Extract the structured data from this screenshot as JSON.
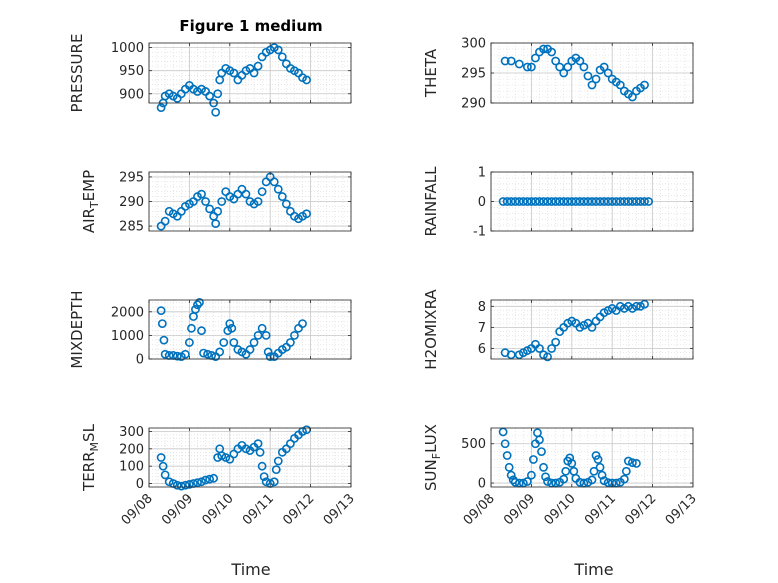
{
  "figure": {
    "title": "Figure 1 medium",
    "xlabel": "Time",
    "xticks": [
      "09/08",
      "09/09",
      "09/10",
      "09/11",
      "09/12",
      "09/13"
    ],
    "series_color": "#0072BD"
  },
  "chart_data": [
    {
      "type": "scatter",
      "ylabel": "PRESSURE",
      "sub": "",
      "ylim": [
        880,
        1010
      ],
      "yticks": [
        900,
        950,
        1000
      ],
      "grid": true,
      "points": [
        [
          0.3,
          870
        ],
        [
          0.35,
          880
        ],
        [
          0.4,
          895
        ],
        [
          0.5,
          900
        ],
        [
          0.6,
          895
        ],
        [
          0.7,
          890
        ],
        [
          0.8,
          900
        ],
        [
          0.9,
          910
        ],
        [
          1.0,
          918
        ],
        [
          1.1,
          910
        ],
        [
          1.2,
          905
        ],
        [
          1.3,
          910
        ],
        [
          1.4,
          905
        ],
        [
          1.5,
          895
        ],
        [
          1.6,
          880
        ],
        [
          1.65,
          860
        ],
        [
          1.7,
          900
        ],
        [
          1.75,
          930
        ],
        [
          1.8,
          945
        ],
        [
          1.9,
          955
        ],
        [
          2.0,
          950
        ],
        [
          2.1,
          945
        ],
        [
          2.2,
          930
        ],
        [
          2.3,
          940
        ],
        [
          2.4,
          950
        ],
        [
          2.5,
          955
        ],
        [
          2.6,
          945
        ],
        [
          2.7,
          960
        ],
        [
          2.8,
          980
        ],
        [
          2.9,
          990
        ],
        [
          3.0,
          995
        ],
        [
          3.1,
          1000
        ],
        [
          3.2,
          995
        ],
        [
          3.3,
          980
        ],
        [
          3.4,
          965
        ],
        [
          3.5,
          955
        ],
        [
          3.6,
          950
        ],
        [
          3.7,
          945
        ],
        [
          3.8,
          935
        ],
        [
          3.9,
          930
        ]
      ]
    },
    {
      "type": "scatter",
      "ylabel": "THETA",
      "sub": "",
      "ylim": [
        290,
        300
      ],
      "yticks": [
        290,
        295,
        300
      ],
      "grid": true,
      "points": [
        [
          0.35,
          297
        ],
        [
          0.5,
          297
        ],
        [
          0.7,
          296.5
        ],
        [
          0.9,
          296
        ],
        [
          1.0,
          296
        ],
        [
          1.1,
          297.5
        ],
        [
          1.2,
          298.5
        ],
        [
          1.3,
          299
        ],
        [
          1.4,
          299
        ],
        [
          1.5,
          298.5
        ],
        [
          1.6,
          297
        ],
        [
          1.7,
          296
        ],
        [
          1.8,
          295
        ],
        [
          1.9,
          296
        ],
        [
          2.0,
          297
        ],
        [
          2.1,
          297.5
        ],
        [
          2.2,
          297
        ],
        [
          2.3,
          296
        ],
        [
          2.4,
          294.5
        ],
        [
          2.5,
          293
        ],
        [
          2.6,
          294
        ],
        [
          2.7,
          295.5
        ],
        [
          2.8,
          296
        ],
        [
          2.9,
          295
        ],
        [
          3.0,
          294
        ],
        [
          3.1,
          293.5
        ],
        [
          3.2,
          293
        ],
        [
          3.3,
          292
        ],
        [
          3.4,
          291.5
        ],
        [
          3.5,
          291
        ],
        [
          3.6,
          292
        ],
        [
          3.7,
          292.5
        ],
        [
          3.8,
          293
        ]
      ]
    },
    {
      "type": "scatter",
      "ylabel": "AIR",
      "sub": "T",
      "ylabel_suffix": "EMP",
      "ylim": [
        284,
        296
      ],
      "yticks": [
        285,
        290,
        295
      ],
      "grid": true,
      "points": [
        [
          0.3,
          285
        ],
        [
          0.4,
          286
        ],
        [
          0.5,
          288
        ],
        [
          0.6,
          287.5
        ],
        [
          0.7,
          287
        ],
        [
          0.8,
          288
        ],
        [
          0.9,
          289
        ],
        [
          1.0,
          289.5
        ],
        [
          1.1,
          290
        ],
        [
          1.2,
          291
        ],
        [
          1.3,
          291.5
        ],
        [
          1.4,
          290
        ],
        [
          1.5,
          288.5
        ],
        [
          1.6,
          287
        ],
        [
          1.65,
          285.5
        ],
        [
          1.7,
          288
        ],
        [
          1.8,
          290
        ],
        [
          1.9,
          292
        ],
        [
          2.0,
          291
        ],
        [
          2.1,
          290.5
        ],
        [
          2.2,
          291.5
        ],
        [
          2.3,
          292.5
        ],
        [
          2.4,
          291.5
        ],
        [
          2.5,
          290
        ],
        [
          2.6,
          289.5
        ],
        [
          2.7,
          290
        ],
        [
          2.8,
          292
        ],
        [
          2.9,
          294
        ],
        [
          3.0,
          295
        ],
        [
          3.1,
          294
        ],
        [
          3.2,
          292.5
        ],
        [
          3.3,
          291
        ],
        [
          3.4,
          289.5
        ],
        [
          3.5,
          288
        ],
        [
          3.6,
          287
        ],
        [
          3.7,
          286.5
        ],
        [
          3.8,
          287
        ],
        [
          3.9,
          287.5
        ]
      ]
    },
    {
      "type": "scatter",
      "ylabel": "RAINFALL",
      "sub": "",
      "ylim": [
        -1,
        1
      ],
      "yticks": [
        -1,
        0,
        1
      ],
      "grid": true,
      "points": [
        [
          0.3,
          0
        ],
        [
          0.4,
          0
        ],
        [
          0.5,
          0
        ],
        [
          0.6,
          0
        ],
        [
          0.7,
          0
        ],
        [
          0.8,
          0
        ],
        [
          0.9,
          0
        ],
        [
          1.0,
          0
        ],
        [
          1.1,
          0
        ],
        [
          1.2,
          0
        ],
        [
          1.3,
          0
        ],
        [
          1.4,
          0
        ],
        [
          1.5,
          0
        ],
        [
          1.6,
          0
        ],
        [
          1.7,
          0
        ],
        [
          1.8,
          0
        ],
        [
          1.9,
          0
        ],
        [
          2.0,
          0
        ],
        [
          2.1,
          0
        ],
        [
          2.2,
          0
        ],
        [
          2.3,
          0
        ],
        [
          2.4,
          0
        ],
        [
          2.5,
          0
        ],
        [
          2.6,
          0
        ],
        [
          2.7,
          0
        ],
        [
          2.8,
          0
        ],
        [
          2.9,
          0
        ],
        [
          3.0,
          0
        ],
        [
          3.1,
          0
        ],
        [
          3.2,
          0
        ],
        [
          3.3,
          0
        ],
        [
          3.4,
          0
        ],
        [
          3.5,
          0
        ],
        [
          3.6,
          0
        ],
        [
          3.7,
          0
        ],
        [
          3.8,
          0
        ],
        [
          3.9,
          0
        ]
      ]
    },
    {
      "type": "scatter",
      "ylabel": "MIXDEPTH",
      "sub": "",
      "ylim": [
        0,
        2500
      ],
      "yticks": [
        0,
        1000,
        2000
      ],
      "grid": true,
      "points": [
        [
          0.3,
          2050
        ],
        [
          0.33,
          1500
        ],
        [
          0.37,
          800
        ],
        [
          0.4,
          200
        ],
        [
          0.5,
          150
        ],
        [
          0.6,
          150
        ],
        [
          0.7,
          120
        ],
        [
          0.8,
          100
        ],
        [
          0.9,
          200
        ],
        [
          1.0,
          700
        ],
        [
          1.05,
          1300
        ],
        [
          1.1,
          1800
        ],
        [
          1.15,
          2100
        ],
        [
          1.2,
          2300
        ],
        [
          1.25,
          2400
        ],
        [
          1.3,
          1200
        ],
        [
          1.35,
          250
        ],
        [
          1.45,
          200
        ],
        [
          1.55,
          150
        ],
        [
          1.65,
          100
        ],
        [
          1.75,
          300
        ],
        [
          1.85,
          700
        ],
        [
          1.95,
          1200
        ],
        [
          2.0,
          1500
        ],
        [
          2.05,
          1300
        ],
        [
          2.1,
          700
        ],
        [
          2.2,
          400
        ],
        [
          2.3,
          300
        ],
        [
          2.4,
          200
        ],
        [
          2.5,
          400
        ],
        [
          2.6,
          700
        ],
        [
          2.7,
          1000
        ],
        [
          2.8,
          1300
        ],
        [
          2.9,
          1000
        ],
        [
          2.95,
          300
        ],
        [
          3.0,
          100
        ],
        [
          3.1,
          100
        ],
        [
          3.2,
          250
        ],
        [
          3.3,
          400
        ],
        [
          3.4,
          500
        ],
        [
          3.5,
          700
        ],
        [
          3.6,
          1000
        ],
        [
          3.7,
          1300
        ],
        [
          3.8,
          1500
        ]
      ]
    },
    {
      "type": "scatter",
      "ylabel": "H2OMIXRA",
      "sub": "",
      "ylim": [
        5.5,
        8.3
      ],
      "yticks": [
        6,
        7,
        8
      ],
      "grid": true,
      "points": [
        [
          0.35,
          5.8
        ],
        [
          0.5,
          5.7
        ],
        [
          0.7,
          5.7
        ],
        [
          0.8,
          5.8
        ],
        [
          0.9,
          5.9
        ],
        [
          1.0,
          6.0
        ],
        [
          1.1,
          6.2
        ],
        [
          1.2,
          6.0
        ],
        [
          1.3,
          5.7
        ],
        [
          1.4,
          5.6
        ],
        [
          1.5,
          6.0
        ],
        [
          1.6,
          6.3
        ],
        [
          1.7,
          6.8
        ],
        [
          1.8,
          7.0
        ],
        [
          1.9,
          7.2
        ],
        [
          2.0,
          7.3
        ],
        [
          2.1,
          7.2
        ],
        [
          2.2,
          7.0
        ],
        [
          2.3,
          7.1
        ],
        [
          2.4,
          7.2
        ],
        [
          2.5,
          7.0
        ],
        [
          2.6,
          7.3
        ],
        [
          2.7,
          7.5
        ],
        [
          2.8,
          7.7
        ],
        [
          2.9,
          7.8
        ],
        [
          3.0,
          7.9
        ],
        [
          3.1,
          7.8
        ],
        [
          3.2,
          8.0
        ],
        [
          3.3,
          7.9
        ],
        [
          3.4,
          8.0
        ],
        [
          3.5,
          7.9
        ],
        [
          3.6,
          8.0
        ],
        [
          3.7,
          8.0
        ],
        [
          3.8,
          8.1
        ]
      ]
    },
    {
      "type": "scatter",
      "ylabel": "TERR",
      "sub": "M",
      "ylabel_suffix": "SL",
      "ylim": [
        -20,
        320
      ],
      "yticks": [
        0,
        100,
        200,
        300
      ],
      "grid": true,
      "points": [
        [
          0.3,
          150
        ],
        [
          0.35,
          100
        ],
        [
          0.4,
          50
        ],
        [
          0.5,
          10
        ],
        [
          0.6,
          0
        ],
        [
          0.7,
          -10
        ],
        [
          0.8,
          -15
        ],
        [
          0.9,
          -10
        ],
        [
          1.0,
          -5
        ],
        [
          1.1,
          0
        ],
        [
          1.2,
          5
        ],
        [
          1.3,
          10
        ],
        [
          1.4,
          20
        ],
        [
          1.5,
          25
        ],
        [
          1.6,
          30
        ],
        [
          1.7,
          150
        ],
        [
          1.75,
          200
        ],
        [
          1.8,
          160
        ],
        [
          1.9,
          150
        ],
        [
          2.0,
          140
        ],
        [
          2.1,
          170
        ],
        [
          2.2,
          200
        ],
        [
          2.3,
          220
        ],
        [
          2.4,
          200
        ],
        [
          2.5,
          190
        ],
        [
          2.6,
          210
        ],
        [
          2.7,
          230
        ],
        [
          2.75,
          180
        ],
        [
          2.8,
          100
        ],
        [
          2.85,
          40
        ],
        [
          2.9,
          10
        ],
        [
          3.0,
          0
        ],
        [
          3.1,
          10
        ],
        [
          3.15,
          80
        ],
        [
          3.2,
          130
        ],
        [
          3.3,
          180
        ],
        [
          3.4,
          200
        ],
        [
          3.5,
          230
        ],
        [
          3.6,
          260
        ],
        [
          3.7,
          280
        ],
        [
          3.8,
          300
        ],
        [
          3.9,
          310
        ]
      ]
    },
    {
      "type": "scatter",
      "ylabel": "SUN",
      "sub": "F",
      "ylabel_suffix": "LUX",
      "ylim": [
        -50,
        700
      ],
      "yticks": [
        0,
        500
      ],
      "grid": true,
      "points": [
        [
          0.3,
          650
        ],
        [
          0.35,
          500
        ],
        [
          0.4,
          350
        ],
        [
          0.45,
          200
        ],
        [
          0.5,
          100
        ],
        [
          0.55,
          40
        ],
        [
          0.6,
          10
        ],
        [
          0.7,
          0
        ],
        [
          0.8,
          0
        ],
        [
          0.9,
          20
        ],
        [
          1.0,
          100
        ],
        [
          1.05,
          300
        ],
        [
          1.1,
          500
        ],
        [
          1.15,
          640
        ],
        [
          1.2,
          550
        ],
        [
          1.25,
          400
        ],
        [
          1.3,
          200
        ],
        [
          1.35,
          80
        ],
        [
          1.4,
          20
        ],
        [
          1.5,
          0
        ],
        [
          1.6,
          0
        ],
        [
          1.7,
          10
        ],
        [
          1.8,
          50
        ],
        [
          1.85,
          150
        ],
        [
          1.9,
          280
        ],
        [
          1.95,
          320
        ],
        [
          2.0,
          250
        ],
        [
          2.05,
          150
        ],
        [
          2.1,
          60
        ],
        [
          2.2,
          10
        ],
        [
          2.3,
          0
        ],
        [
          2.4,
          10
        ],
        [
          2.5,
          40
        ],
        [
          2.55,
          150
        ],
        [
          2.6,
          350
        ],
        [
          2.65,
          300
        ],
        [
          2.7,
          200
        ],
        [
          2.75,
          100
        ],
        [
          2.8,
          30
        ],
        [
          2.9,
          5
        ],
        [
          3.0,
          0
        ],
        [
          3.1,
          0
        ],
        [
          3.2,
          10
        ],
        [
          3.3,
          50
        ],
        [
          3.35,
          150
        ],
        [
          3.4,
          280
        ],
        [
          3.5,
          260
        ],
        [
          3.6,
          250
        ]
      ]
    }
  ]
}
